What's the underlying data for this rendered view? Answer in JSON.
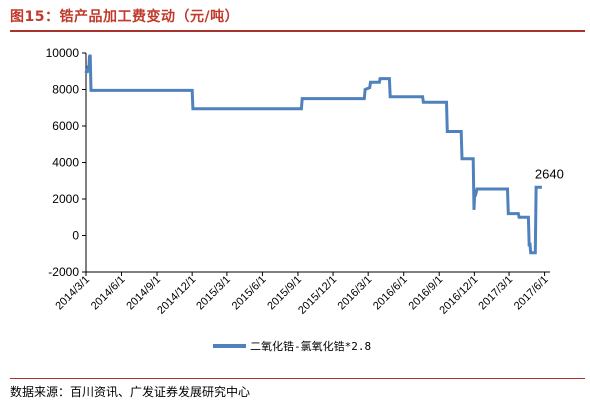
{
  "header": {
    "title": "图15：锆产品加工费变动（元/吨）"
  },
  "footer": {
    "source": "数据来源：百川资讯、广发证券发展研究中心"
  },
  "chart_data": {
    "type": "line",
    "title": "",
    "xlabel": "",
    "ylabel": "",
    "ylim": [
      -2000,
      10000
    ],
    "yticks": [
      -2000,
      0,
      2000,
      4000,
      6000,
      8000,
      10000
    ],
    "ytick_labels": [
      "-2000",
      "0",
      "2000",
      "4000",
      "6000",
      "8000",
      "10000"
    ],
    "xlim": [
      "2014-03-01",
      "2017-06-15"
    ],
    "xticks": [
      "2014-03-01",
      "2014-06-01",
      "2014-09-01",
      "2014-12-01",
      "2015-03-01",
      "2015-06-01",
      "2015-09-01",
      "2015-12-01",
      "2016-03-01",
      "2016-06-01",
      "2016-09-01",
      "2016-12-01",
      "2017-03-01",
      "2017-06-01"
    ],
    "xtick_labels": [
      "2014/3/1",
      "2014/6/1",
      "2014/9/1",
      "2014/12/1",
      "2015/3/1",
      "2015/6/1",
      "2015/9/1",
      "2015/12/1",
      "2016/3/1",
      "2016/6/1",
      "2016/9/1",
      "2016/12/1",
      "2017/3/1",
      "2017/6/1"
    ],
    "grid": false,
    "legend": "bottom",
    "series_color": "#4f81bd",
    "series": [
      {
        "name": "二氧化锆-氯氧化锆*2.8",
        "points": [
          [
            "2014-03-01",
            8900
          ],
          [
            "2014-03-03",
            9100
          ],
          [
            "2014-03-04",
            8900
          ],
          [
            "2014-03-06",
            9300
          ],
          [
            "2014-03-08",
            9000
          ],
          [
            "2014-03-10",
            9800
          ],
          [
            "2014-03-12",
            9900
          ],
          [
            "2014-03-14",
            7950
          ],
          [
            "2014-12-01",
            7950
          ],
          [
            "2014-12-03",
            6950
          ],
          [
            "2015-09-10",
            6950
          ],
          [
            "2015-09-12",
            7500
          ],
          [
            "2016-02-20",
            7500
          ],
          [
            "2016-02-22",
            8000
          ],
          [
            "2016-03-05",
            8100
          ],
          [
            "2016-03-07",
            8400
          ],
          [
            "2016-03-30",
            8400
          ],
          [
            "2016-04-01",
            8600
          ],
          [
            "2016-04-25",
            8600
          ],
          [
            "2016-04-27",
            7600
          ],
          [
            "2016-07-20",
            7600
          ],
          [
            "2016-07-22",
            7300
          ],
          [
            "2016-09-20",
            7300
          ],
          [
            "2016-09-22",
            5700
          ],
          [
            "2016-10-28",
            5700
          ],
          [
            "2016-10-30",
            4200
          ],
          [
            "2016-11-28",
            4200
          ],
          [
            "2016-11-30",
            1400
          ],
          [
            "2016-12-02",
            2400
          ],
          [
            "2016-12-05",
            2300
          ],
          [
            "2016-12-08",
            2550
          ],
          [
            "2017-02-25",
            2550
          ],
          [
            "2017-02-27",
            1200
          ],
          [
            "2017-03-25",
            1200
          ],
          [
            "2017-03-27",
            1000
          ],
          [
            "2017-04-20",
            1000
          ],
          [
            "2017-04-22",
            -600
          ],
          [
            "2017-04-24",
            -400
          ],
          [
            "2017-04-26",
            -950
          ],
          [
            "2017-05-08",
            -950
          ],
          [
            "2017-05-10",
            2640
          ],
          [
            "2017-05-25",
            2640
          ]
        ]
      }
    ],
    "annotations": [
      {
        "text": "2640",
        "x": "2017-05-25",
        "y": 2640
      }
    ]
  }
}
